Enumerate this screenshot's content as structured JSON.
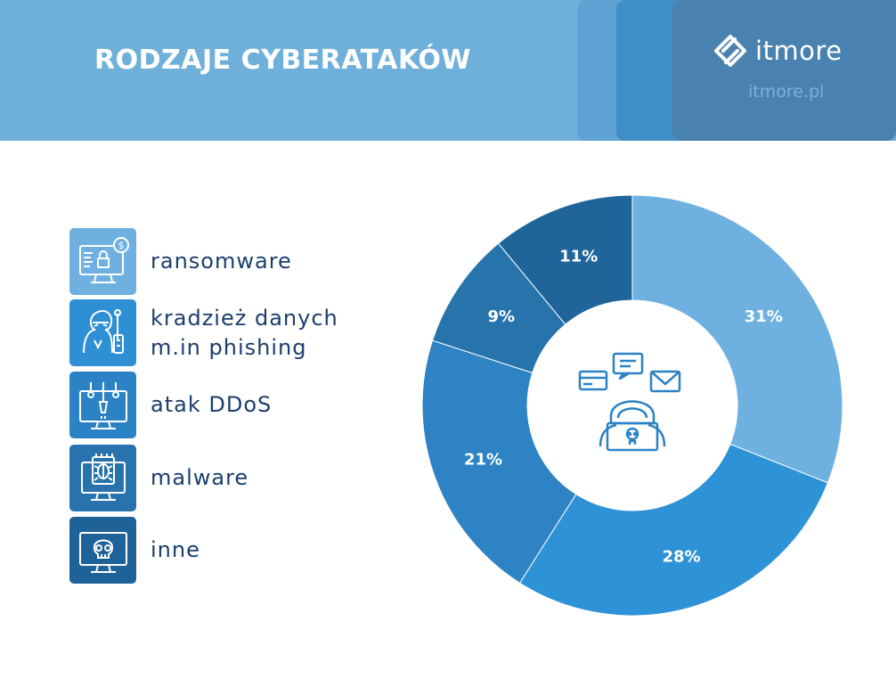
{
  "header": {
    "title": "RODZAJE CYBERATAKÓW",
    "logo_text": "itmore",
    "logo_url": "itmore.pl",
    "logo_icon": "itmore-logo-icon"
  },
  "legend": [
    {
      "label_line1": "ransomware",
      "label_line2": "",
      "icon": "ransomware-monitor-lock-icon",
      "color": "#6fb0e0"
    },
    {
      "label_line1": "kradzież danych",
      "label_line2": "m.in phishing",
      "icon": "hacker-phishing-icon",
      "color": "#2e8fd4"
    },
    {
      "label_line1": "atak DDoS",
      "label_line2": "",
      "icon": "ddos-monitor-icon",
      "color": "#2b82c4"
    },
    {
      "label_line1": "malware",
      "label_line2": "",
      "icon": "malware-bug-chip-icon",
      "color": "#2873ad"
    },
    {
      "label_line1": "inne",
      "label_line2": "",
      "icon": "skull-monitor-icon",
      "color": "#1f6298"
    }
  ],
  "chart_data": {
    "type": "pie",
    "title": "RODZAJE CYBERATAKÓW",
    "donut": true,
    "categories": [
      "ransomware",
      "kradzież danych m.in phishing",
      "atak DDoS",
      "malware",
      "inne"
    ],
    "values": [
      31,
      28,
      21,
      9,
      11
    ],
    "labels": [
      "31%",
      "28%",
      "21%",
      "9%",
      "11%"
    ],
    "colors": [
      "#6eb1e1",
      "#2e92d7",
      "#2d83c3",
      "#2774ad",
      "#206599"
    ],
    "center_icon": "hacker-center-icon",
    "legend_position": "left"
  }
}
